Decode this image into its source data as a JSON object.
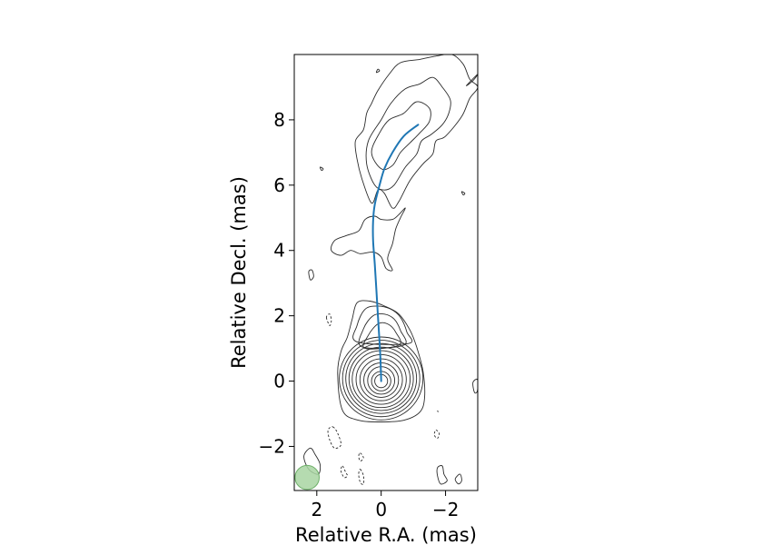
{
  "chart_data": {
    "type": "contour",
    "xlabel": "Relative R.A. (mas)",
    "ylabel": "Relative Decl. (mas)",
    "xlim": [
      2.7,
      -3.0
    ],
    "ylim": [
      -3.35,
      10.0
    ],
    "xticks": [
      {
        "value": 2,
        "label": "2"
      },
      {
        "value": 0,
        "label": "0"
      },
      {
        "value": -2,
        "label": "−2"
      }
    ],
    "yticks": [
      {
        "value": -2,
        "label": "−2"
      },
      {
        "value": 0,
        "label": "0"
      },
      {
        "value": 2,
        "label": "2"
      },
      {
        "value": 4,
        "label": "4"
      },
      {
        "value": 6,
        "label": "6"
      },
      {
        "value": 8,
        "label": "8"
      }
    ],
    "grid": false,
    "core": {
      "x": 0.0,
      "y": 0.0
    },
    "core_contours": [
      {
        "rx": 0.2,
        "ry": 0.2,
        "dy": 0.0
      },
      {
        "rx": 0.3,
        "ry": 0.3,
        "dy": 0.0
      },
      {
        "rx": 0.42,
        "ry": 0.42,
        "dy": 0.02
      },
      {
        "rx": 0.54,
        "ry": 0.53,
        "dy": 0.03
      },
      {
        "rx": 0.66,
        "ry": 0.64,
        "dy": 0.04
      },
      {
        "rx": 0.78,
        "ry": 0.76,
        "dy": 0.05
      },
      {
        "rx": 0.9,
        "ry": 0.87,
        "dy": 0.06
      },
      {
        "rx": 1.0,
        "ry": 0.97,
        "dy": 0.07
      },
      {
        "rx": 1.1,
        "ry": 1.07,
        "dy": 0.08
      },
      {
        "rx": 1.2,
        "ry": 1.17,
        "dy": 0.08
      },
      {
        "rx": 1.3,
        "ry": 1.27,
        "dy": 0.08
      }
    ],
    "extended_contours": [
      {
        "style": "solid",
        "points": [
          [
            1.35,
            0.2
          ],
          [
            1.25,
            0.9
          ],
          [
            1.05,
            1.35
          ],
          [
            0.9,
            1.9
          ],
          [
            0.75,
            2.4
          ],
          [
            0.35,
            2.45
          ],
          [
            -0.1,
            2.3
          ],
          [
            -0.55,
            2.05
          ],
          [
            -0.9,
            1.55
          ],
          [
            -1.1,
            1.05
          ],
          [
            -1.3,
            0.3
          ],
          [
            -1.35,
            -0.5
          ],
          [
            -1.2,
            -0.95
          ],
          [
            -0.7,
            -1.2
          ],
          [
            0,
            -1.25
          ],
          [
            0.7,
            -1.2
          ],
          [
            1.2,
            -0.9
          ]
        ]
      },
      {
        "style": "solid",
        "points": [
          [
            0.75,
            1.2
          ],
          [
            0.75,
            1.7
          ],
          [
            0.5,
            2.2
          ],
          [
            0.1,
            2.3
          ],
          [
            -0.3,
            2.2
          ],
          [
            -0.6,
            1.95
          ],
          [
            -0.8,
            1.5
          ],
          [
            -0.85,
            1.15
          ]
        ]
      },
      {
        "style": "solid",
        "points": [
          [
            0.6,
            1.05
          ],
          [
            0.55,
            1.6
          ],
          [
            0.25,
            2.0
          ],
          [
            -0.1,
            2.05
          ],
          [
            -0.4,
            1.9
          ],
          [
            -0.6,
            1.55
          ],
          [
            -0.7,
            1.1
          ]
        ]
      },
      {
        "style": "solid",
        "points": [
          [
            0.5,
            1.0
          ],
          [
            0.4,
            1.4
          ],
          [
            0.1,
            1.75
          ],
          [
            -0.2,
            1.75
          ],
          [
            -0.45,
            1.5
          ],
          [
            -0.55,
            1.1
          ]
        ]
      },
      {
        "style": "solid",
        "points": [
          [
            1.55,
            4.0
          ],
          [
            1.45,
            4.3
          ],
          [
            1.1,
            4.45
          ],
          [
            0.7,
            4.6
          ],
          [
            0.5,
            4.95
          ],
          [
            0.2,
            5.05
          ],
          [
            0.0,
            4.95
          ],
          [
            -0.35,
            4.95
          ],
          [
            -0.55,
            5.1
          ],
          [
            -0.75,
            5.3
          ],
          [
            -0.6,
            5.0
          ],
          [
            -0.45,
            4.65
          ],
          [
            -0.35,
            4.2
          ],
          [
            -0.2,
            3.75
          ],
          [
            -0.35,
            3.4
          ],
          [
            -0.15,
            3.45
          ],
          [
            0.0,
            3.8
          ],
          [
            0.25,
            3.95
          ],
          [
            0.65,
            3.9
          ],
          [
            0.95,
            4.0
          ],
          [
            1.25,
            3.85
          ]
        ]
      },
      {
        "style": "solid",
        "points": [
          [
            0.3,
            5.45
          ],
          [
            0.6,
            6.2
          ],
          [
            0.75,
            6.8
          ],
          [
            0.8,
            7.35
          ],
          [
            0.55,
            7.7
          ],
          [
            0.45,
            8.2
          ],
          [
            0.3,
            8.5
          ],
          [
            0.1,
            8.9
          ],
          [
            -0.25,
            9.4
          ],
          [
            -0.6,
            9.75
          ],
          [
            -1.2,
            9.85
          ],
          [
            -1.7,
            9.95
          ],
          [
            -2.2,
            10.0
          ],
          [
            -2.55,
            9.7
          ],
          [
            -2.75,
            9.25
          ],
          [
            -3.0,
            9.0
          ],
          [
            -2.75,
            8.65
          ],
          [
            -2.5,
            8.1
          ],
          [
            -2.0,
            7.5
          ],
          [
            -1.7,
            7.35
          ],
          [
            -1.6,
            6.95
          ],
          [
            -1.3,
            6.65
          ],
          [
            -0.9,
            6.15
          ],
          [
            -0.55,
            5.5
          ],
          [
            -0.35,
            5.3
          ],
          [
            -0.1,
            5.75
          ],
          [
            0.1,
            5.85
          ]
        ]
      },
      {
        "style": "solid",
        "points": [
          [
            0.2,
            6.0
          ],
          [
            0.45,
            6.65
          ],
          [
            0.4,
            7.35
          ],
          [
            0.0,
            8.0
          ],
          [
            -0.3,
            8.5
          ],
          [
            -0.75,
            8.95
          ],
          [
            -1.2,
            9.1
          ],
          [
            -1.6,
            9.3
          ],
          [
            -1.9,
            9.0
          ],
          [
            -2.15,
            8.6
          ],
          [
            -2.1,
            8.2
          ],
          [
            -1.9,
            7.85
          ],
          [
            -1.55,
            7.55
          ],
          [
            -1.25,
            7.35
          ],
          [
            -1.1,
            6.95
          ],
          [
            -0.75,
            6.55
          ],
          [
            -0.4,
            6.0
          ],
          [
            -0.1,
            5.85
          ]
        ]
      },
      {
        "style": "solid",
        "points": [
          [
            0.0,
            6.5
          ],
          [
            0.3,
            7.0
          ],
          [
            0.05,
            7.6
          ],
          [
            -0.25,
            8.0
          ],
          [
            -0.7,
            8.2
          ],
          [
            -1.1,
            8.55
          ],
          [
            -1.5,
            8.35
          ],
          [
            -1.5,
            7.95
          ],
          [
            -1.2,
            7.6
          ],
          [
            -0.9,
            7.3
          ],
          [
            -0.6,
            7.0
          ],
          [
            -0.35,
            6.6
          ]
        ]
      },
      {
        "style": "solid",
        "points": [
          [
            -2.65,
            9.05
          ],
          [
            -2.85,
            9.2
          ],
          [
            -3.0,
            9.4
          ]
        ]
      },
      {
        "style": "solid",
        "points": [
          [
            2.2,
            -2.05
          ],
          [
            2.05,
            -2.25
          ],
          [
            1.9,
            -2.55
          ],
          [
            1.95,
            -2.85
          ],
          [
            2.25,
            -2.7
          ],
          [
            2.4,
            -2.3
          ]
        ]
      },
      {
        "style": "solid",
        "points": [
          [
            -1.9,
            -2.6
          ],
          [
            -1.95,
            -2.85
          ],
          [
            -2.05,
            -3.05
          ],
          [
            -1.85,
            -3.15
          ],
          [
            -1.75,
            -2.9
          ],
          [
            -1.75,
            -2.65
          ]
        ]
      },
      {
        "style": "solid",
        "points": [
          [
            -2.45,
            -2.85
          ],
          [
            -2.5,
            -3.05
          ],
          [
            -2.4,
            -3.15
          ],
          [
            -2.3,
            -3.0
          ]
        ]
      },
      {
        "style": "solid",
        "points": [
          [
            2.25,
            3.35
          ],
          [
            2.2,
            3.1
          ],
          [
            2.1,
            3.2
          ],
          [
            2.15,
            3.4
          ]
        ]
      },
      {
        "style": "solid",
        "points": [
          [
            1.9,
            6.55
          ],
          [
            1.8,
            6.5
          ],
          [
            1.85,
            6.45
          ]
        ]
      },
      {
        "style": "solid",
        "points": [
          [
            -2.5,
            5.8
          ],
          [
            -2.6,
            5.75
          ],
          [
            -2.55,
            5.7
          ]
        ]
      },
      {
        "style": "solid",
        "points": [
          [
            0.15,
            9.45
          ],
          [
            0.05,
            9.5
          ],
          [
            0.1,
            9.55
          ]
        ]
      },
      {
        "style": "solid",
        "points": [
          [
            -2.85,
            -0.05
          ],
          [
            -2.9,
            -0.35
          ],
          [
            -2.99,
            -0.3
          ],
          [
            -2.99,
            0.05
          ]
        ]
      },
      {
        "style": "dashed",
        "points": [
          [
            1.5,
            -1.4
          ],
          [
            1.35,
            -1.6
          ],
          [
            1.25,
            -1.95
          ],
          [
            1.45,
            -2.05
          ],
          [
            1.6,
            -1.8
          ],
          [
            1.65,
            -1.5
          ]
        ]
      },
      {
        "style": "dashed",
        "points": [
          [
            1.7,
            1.95
          ],
          [
            1.6,
            1.7
          ],
          [
            1.55,
            1.85
          ],
          [
            1.6,
            2.05
          ]
        ]
      },
      {
        "style": "dashed",
        "points": [
          [
            1.2,
            -2.6
          ],
          [
            1.1,
            -2.8
          ],
          [
            1.05,
            -2.9
          ],
          [
            1.15,
            -2.95
          ],
          [
            1.25,
            -2.75
          ]
        ]
      },
      {
        "style": "dashed",
        "points": [
          [
            0.65,
            -2.7
          ],
          [
            0.55,
            -2.9
          ],
          [
            0.55,
            -3.15
          ],
          [
            0.65,
            -3.1
          ],
          [
            0.7,
            -2.85
          ]
        ]
      },
      {
        "style": "dashed",
        "points": [
          [
            0.65,
            -2.2
          ],
          [
            0.55,
            -2.35
          ],
          [
            0.65,
            -2.45
          ],
          [
            0.7,
            -2.3
          ]
        ]
      },
      {
        "style": "dashed",
        "points": [
          [
            -1.7,
            -1.5
          ],
          [
            -1.8,
            -1.6
          ],
          [
            -1.75,
            -1.75
          ],
          [
            -1.65,
            -1.65
          ]
        ]
      },
      {
        "style": "dashed",
        "points": [
          [
            -1.75,
            -0.9
          ],
          [
            -1.77,
            -0.95
          ]
        ]
      }
    ],
    "jet_path": [
      [
        0.0,
        0.0
      ],
      [
        0.02,
        0.6
      ],
      [
        0.05,
        1.2
      ],
      [
        0.1,
        2.0
      ],
      [
        0.15,
        2.8
      ],
      [
        0.2,
        3.6
      ],
      [
        0.25,
        4.3
      ],
      [
        0.25,
        4.9
      ],
      [
        0.2,
        5.4
      ],
      [
        0.05,
        6.0
      ],
      [
        -0.1,
        6.5
      ],
      [
        -0.35,
        7.0
      ],
      [
        -0.7,
        7.5
      ],
      [
        -1.15,
        7.85
      ]
    ],
    "beam": {
      "x": 2.3,
      "y": -2.95,
      "diameter_mas": 0.75,
      "color": "#a8d5a2"
    },
    "colors": {
      "contour": "#2b2b2b",
      "jet": "#1f77b4",
      "beam_fill": "#a8d5a2",
      "beam_edge": "#6fb06a"
    }
  }
}
